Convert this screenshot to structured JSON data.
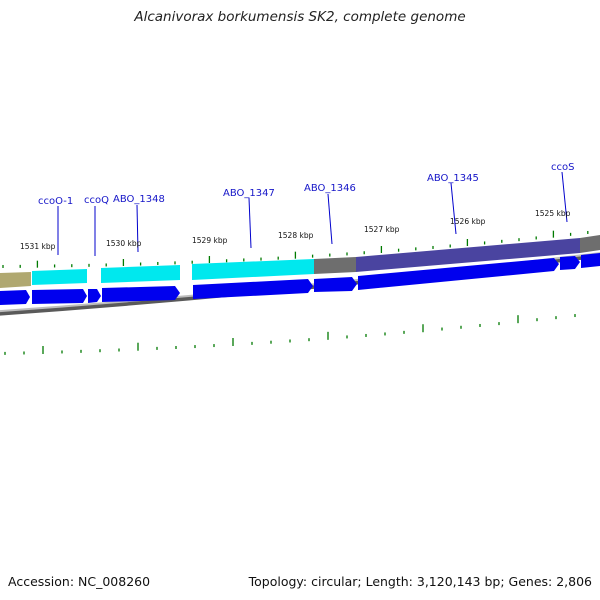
{
  "title": "Alcanivorax borkumensis SK2, complete genome",
  "footer": {
    "accession": "Accession: NC_008260",
    "summary": "Topology: circular; Length: 3,120,143 bp; Genes: 2,806"
  },
  "colors": {
    "cds": "#0000ee",
    "gene_cyan": "#00e8ee",
    "gene_navy": "#4a44a0",
    "gene_grey": "#777777",
    "gene_olive": "#b0a870",
    "backbone": "#8a8a8a",
    "tick": "#007a00",
    "label": "#1515c8"
  },
  "gene_labels": [
    {
      "id": "ccoO-1",
      "text": "ccoO-1"
    },
    {
      "id": "ccoQ",
      "text": "ccoQ"
    },
    {
      "id": "ABO_1348",
      "text": "ABO_1348"
    },
    {
      "id": "ABO_1347",
      "text": "ABO_1347"
    },
    {
      "id": "ABO_1346",
      "text": "ABO_1346"
    },
    {
      "id": "ABO_1345",
      "text": "ABO_1345"
    },
    {
      "id": "ccoS",
      "text": "ccoS"
    }
  ],
  "kbp_ticks": [
    {
      "text": "1531 kbp"
    },
    {
      "text": "1530 kbp"
    },
    {
      "text": "1529 kbp"
    },
    {
      "text": "1528 kbp"
    },
    {
      "text": "1527 kbp"
    },
    {
      "text": "1526 kbp"
    },
    {
      "text": "1525 kbp"
    }
  ]
}
